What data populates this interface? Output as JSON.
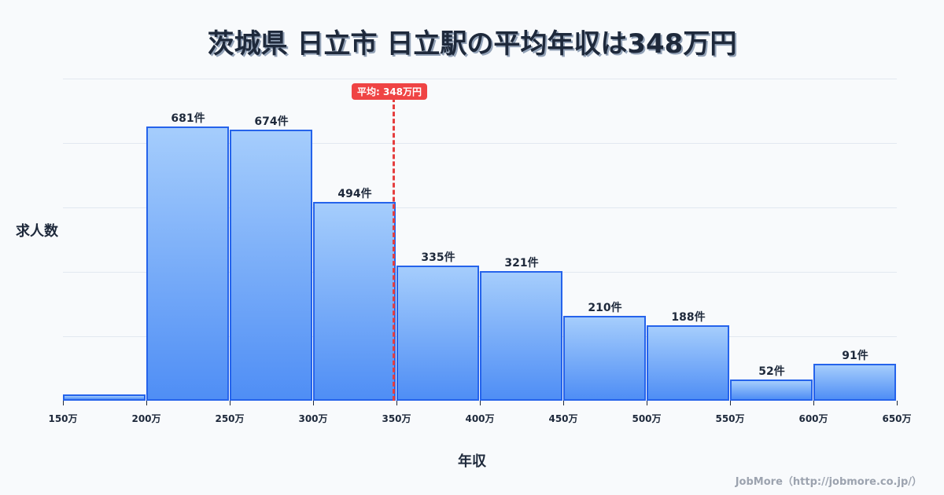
{
  "title": "茨城県 日立市 日立駅の平均年収は348万円",
  "ylabel": "求人数",
  "xlabel": "年収",
  "credit": "JobMore（http://jobmore.co.jp/）",
  "average": {
    "label": "平均: 348万円",
    "value": 348
  },
  "colors": {
    "bar_fill_top": "#a5cdfc",
    "bar_fill_bottom": "#4f8ef5",
    "bar_border": "#2563eb",
    "avg_line": "#ef4444",
    "text": "#1e293b"
  },
  "chart_data": {
    "type": "bar",
    "title": "茨城県 日立市 日立駅の平均年収は348万円",
    "xlabel": "年収",
    "ylabel": "求人数",
    "categories": [
      "150-200万",
      "200-250万",
      "250-300万",
      "300-350万",
      "350-400万",
      "400-450万",
      "450-500万",
      "500-550万",
      "550-600万",
      "600-650万"
    ],
    "values": [
      15,
      681,
      674,
      494,
      335,
      321,
      210,
      188,
      52,
      91
    ],
    "value_labels": [
      "",
      "681件",
      "674件",
      "494件",
      "335件",
      "321件",
      "210件",
      "188件",
      "52件",
      "91件"
    ],
    "x_ticks": [
      "150万",
      "200万",
      "250万",
      "300万",
      "350万",
      "400万",
      "450万",
      "500万",
      "550万",
      "600万",
      "650万"
    ],
    "ylim": [
      0,
      800
    ],
    "grid": true,
    "annotations": [
      {
        "type": "vline",
        "x": 348,
        "label": "平均: 348万円"
      }
    ]
  }
}
